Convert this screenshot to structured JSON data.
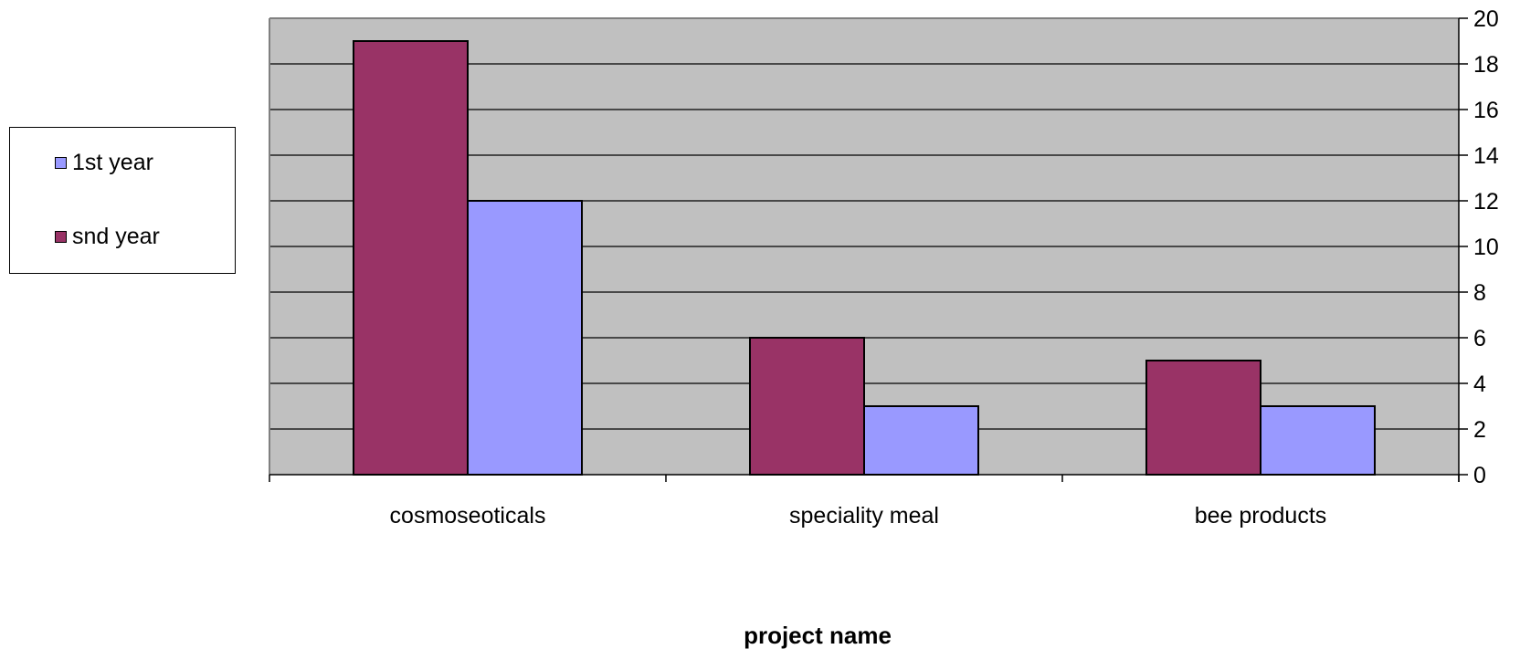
{
  "chart_data": {
    "type": "bar",
    "title": "",
    "xlabel": "project name",
    "ylabel": "",
    "categories": [
      "cosmoseoticals",
      "speciality meal",
      "bee products"
    ],
    "series": [
      {
        "name": "snd year",
        "values": [
          19,
          6,
          5
        ],
        "color": "#993366"
      },
      {
        "name": "1st year",
        "values": [
          12,
          3,
          3
        ],
        "color": "#9999ff"
      }
    ],
    "ylim": [
      0,
      20
    ],
    "yticks": [
      0,
      2,
      4,
      6,
      8,
      10,
      12,
      14,
      16,
      18,
      20
    ],
    "y_axis_side": "right",
    "grid": true,
    "plot_background": "#c0c0c0",
    "legend": {
      "position": "left",
      "entries": [
        {
          "label": "1st year",
          "color": "#9999ff"
        },
        {
          "label": "snd year",
          "color": "#993366"
        }
      ]
    }
  }
}
